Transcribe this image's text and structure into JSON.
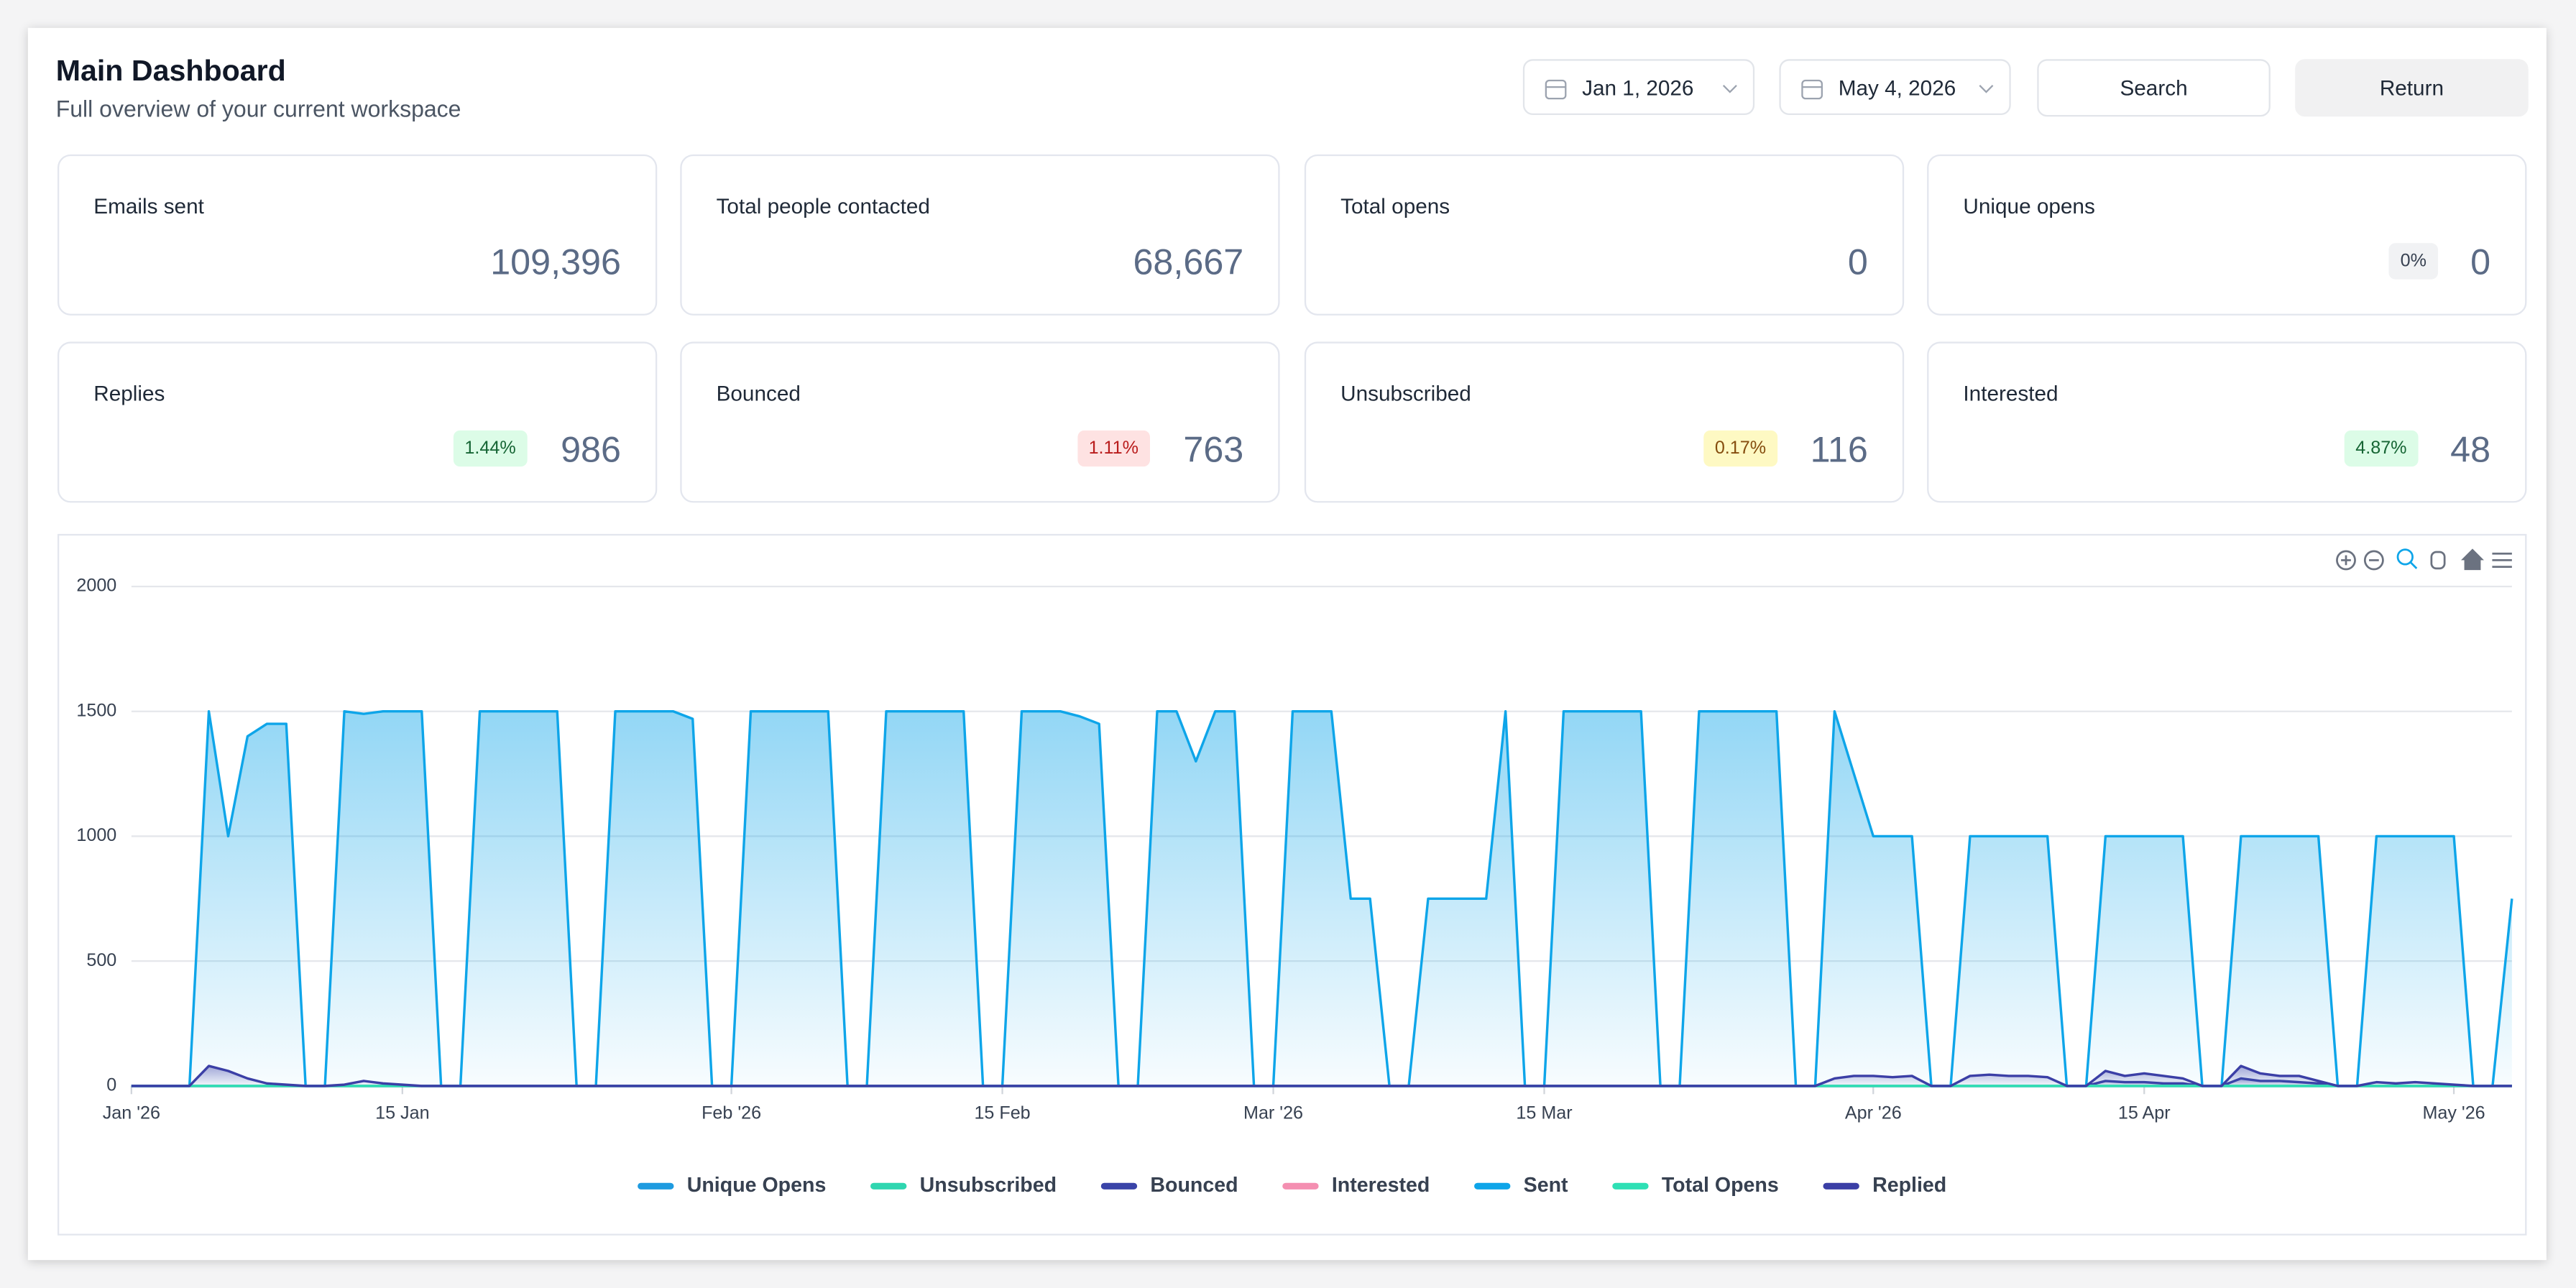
{
  "header": {
    "title": "Main Dashboard",
    "subtitle": "Full overview of your current workspace"
  },
  "filters": {
    "start_date": "Jan 1, 2026",
    "end_date": "May 4, 2026",
    "search": "Search",
    "return": "Return"
  },
  "stats": [
    {
      "label": "Emails sent",
      "value": "109,396"
    },
    {
      "label": "Total people contacted",
      "value": "68,667"
    },
    {
      "label": "Total opens",
      "value": "0"
    },
    {
      "label": "Unique opens",
      "value": "0",
      "badge": "0%"
    },
    {
      "label": "Replies",
      "value": "986",
      "badge": "1.44%"
    },
    {
      "label": "Bounced",
      "value": "763",
      "badge": "1.11%"
    },
    {
      "label": "Unsubscribed",
      "value": "116",
      "badge": "0.17%"
    },
    {
      "label": "Interested",
      "value": "48",
      "badge": "4.87%"
    }
  ],
  "chart_data": {
    "type": "area",
    "grid": true,
    "xlim": [
      "2026-01-01",
      "2026-05-04"
    ],
    "xticks": [
      {
        "value": "2026-01-01",
        "label": "Jan '26"
      },
      {
        "value": "2026-01-15",
        "label": "15 Jan"
      },
      {
        "value": "2026-02-01",
        "label": "Feb '26"
      },
      {
        "value": "2026-02-15",
        "label": "15 Feb"
      },
      {
        "value": "2026-03-01",
        "label": "Mar '26"
      },
      {
        "value": "2026-03-15",
        "label": "15 Mar"
      },
      {
        "value": "2026-04-01",
        "label": "Apr '26"
      },
      {
        "value": "2026-04-15",
        "label": "15 Apr"
      },
      {
        "value": "2026-05-01",
        "label": "May '26"
      }
    ],
    "ylim": [
      0,
      2000
    ],
    "yticks": [
      0,
      500,
      1000,
      1500,
      2000
    ],
    "x": [
      "2026-01-01",
      "2026-01-02",
      "2026-01-03",
      "2026-01-04",
      "2026-01-05",
      "2026-01-06",
      "2026-01-07",
      "2026-01-08",
      "2026-01-09",
      "2026-01-10",
      "2026-01-11",
      "2026-01-12",
      "2026-01-13",
      "2026-01-14",
      "2026-01-15",
      "2026-01-16",
      "2026-01-17",
      "2026-01-18",
      "2026-01-19",
      "2026-01-20",
      "2026-01-21",
      "2026-01-22",
      "2026-01-23",
      "2026-01-24",
      "2026-01-25",
      "2026-01-26",
      "2026-01-27",
      "2026-01-28",
      "2026-01-29",
      "2026-01-30",
      "2026-01-31",
      "2026-02-01",
      "2026-02-02",
      "2026-02-03",
      "2026-02-04",
      "2026-02-05",
      "2026-02-06",
      "2026-02-07",
      "2026-02-08",
      "2026-02-09",
      "2026-02-10",
      "2026-02-11",
      "2026-02-12",
      "2026-02-13",
      "2026-02-14",
      "2026-02-15",
      "2026-02-16",
      "2026-02-17",
      "2026-02-18",
      "2026-02-19",
      "2026-02-20",
      "2026-02-21",
      "2026-02-22",
      "2026-02-23",
      "2026-02-24",
      "2026-02-25",
      "2026-02-26",
      "2026-02-27",
      "2026-02-28",
      "2026-03-01",
      "2026-03-02",
      "2026-03-03",
      "2026-03-04",
      "2026-03-05",
      "2026-03-06",
      "2026-03-07",
      "2026-03-08",
      "2026-03-09",
      "2026-03-10",
      "2026-03-11",
      "2026-03-12",
      "2026-03-13",
      "2026-03-14",
      "2026-03-15",
      "2026-03-16",
      "2026-03-17",
      "2026-03-18",
      "2026-03-19",
      "2026-03-20",
      "2026-03-21",
      "2026-03-22",
      "2026-03-23",
      "2026-03-24",
      "2026-03-25",
      "2026-03-26",
      "2026-03-27",
      "2026-03-28",
      "2026-03-29",
      "2026-03-30",
      "2026-03-31",
      "2026-04-01",
      "2026-04-02",
      "2026-04-03",
      "2026-04-04",
      "2026-04-05",
      "2026-04-06",
      "2026-04-07",
      "2026-04-08",
      "2026-04-09",
      "2026-04-10",
      "2026-04-11",
      "2026-04-12",
      "2026-04-13",
      "2026-04-14",
      "2026-04-15",
      "2026-04-16",
      "2026-04-17",
      "2026-04-18",
      "2026-04-19",
      "2026-04-20",
      "2026-04-21",
      "2026-04-22",
      "2026-04-23",
      "2026-04-24",
      "2026-04-25",
      "2026-04-26",
      "2026-04-27",
      "2026-04-28",
      "2026-04-29",
      "2026-04-30",
      "2026-05-01",
      "2026-05-02",
      "2026-05-03",
      "2026-05-04"
    ],
    "series": [
      {
        "name": "Unique Opens",
        "color": "#1e9be0",
        "values": [
          0,
          0,
          0,
          0,
          0,
          0,
          0,
          0,
          0,
          0,
          0,
          0,
          0,
          0,
          0,
          0,
          0,
          0,
          0,
          0,
          0,
          0,
          0,
          0,
          0,
          0,
          0,
          0,
          0,
          0,
          0,
          0,
          0,
          0,
          0,
          0,
          0,
          0,
          0,
          0,
          0,
          0,
          0,
          0,
          0,
          0,
          0,
          0,
          0,
          0,
          0,
          0,
          0,
          0,
          0,
          0,
          0,
          0,
          0,
          0,
          0,
          0,
          0,
          0,
          0,
          0,
          0,
          0,
          0,
          0,
          0,
          0,
          0,
          0,
          0,
          0,
          0,
          0,
          0,
          0,
          0,
          0,
          0,
          0,
          0,
          0,
          0,
          0,
          0,
          0,
          0,
          0,
          0,
          0,
          0,
          0,
          0,
          0,
          0,
          0,
          0,
          0,
          0,
          0,
          0,
          0,
          0,
          0,
          0,
          0,
          0,
          0,
          0,
          0,
          0,
          0,
          0,
          0,
          0,
          0,
          0,
          0,
          0,
          0
        ]
      },
      {
        "name": "Unsubscribed",
        "color": "#2fd6b0",
        "values": [
          0,
          0,
          0,
          0,
          0,
          0,
          0,
          0,
          0,
          0,
          0,
          0,
          0,
          0,
          0,
          0,
          0,
          0,
          0,
          0,
          0,
          0,
          0,
          0,
          0,
          0,
          0,
          0,
          0,
          0,
          0,
          0,
          0,
          0,
          0,
          0,
          0,
          0,
          0,
          0,
          0,
          0,
          0,
          0,
          0,
          0,
          0,
          0,
          0,
          0,
          0,
          0,
          0,
          0,
          0,
          0,
          0,
          0,
          0,
          0,
          0,
          0,
          0,
          0,
          0,
          0,
          0,
          0,
          0,
          0,
          0,
          0,
          0,
          0,
          0,
          0,
          0,
          0,
          0,
          0,
          0,
          0,
          0,
          0,
          0,
          0,
          0,
          0,
          0,
          0,
          0,
          0,
          0,
          0,
          0,
          0,
          0,
          0,
          0,
          0,
          0,
          0,
          0,
          0,
          0,
          0,
          0,
          0,
          0,
          0,
          0,
          0,
          0,
          0,
          0,
          0,
          0,
          0,
          0,
          0,
          0,
          0,
          0,
          0
        ]
      },
      {
        "name": "Bounced",
        "color": "#3a44a8",
        "values": [
          0,
          0,
          0,
          0,
          0,
          0,
          0,
          0,
          0,
          0,
          0,
          0,
          0,
          0,
          0,
          0,
          0,
          0,
          0,
          0,
          0,
          0,
          0,
          0,
          0,
          0,
          0,
          0,
          0,
          0,
          0,
          0,
          0,
          0,
          0,
          0,
          0,
          0,
          0,
          0,
          0,
          0,
          0,
          0,
          0,
          0,
          0,
          0,
          0,
          0,
          0,
          0,
          0,
          0,
          0,
          0,
          0,
          0,
          0,
          0,
          0,
          0,
          0,
          0,
          0,
          0,
          0,
          0,
          0,
          0,
          0,
          0,
          0,
          0,
          0,
          0,
          0,
          0,
          0,
          0,
          0,
          0,
          0,
          0,
          0,
          0,
          0,
          0,
          0,
          0,
          0,
          0,
          0,
          0,
          0,
          0,
          0,
          0,
          0,
          0,
          0,
          0,
          20,
          15,
          15,
          10,
          10,
          0,
          0,
          30,
          20,
          20,
          15,
          10,
          0,
          0,
          0,
          0,
          0,
          0,
          0,
          0,
          0,
          0
        ]
      },
      {
        "name": "Interested",
        "color": "#f48fb1",
        "values": [
          0,
          0,
          0,
          0,
          0,
          0,
          0,
          0,
          0,
          0,
          0,
          0,
          0,
          0,
          0,
          0,
          0,
          0,
          0,
          0,
          0,
          0,
          0,
          0,
          0,
          0,
          0,
          0,
          0,
          0,
          0,
          0,
          0,
          0,
          0,
          0,
          0,
          0,
          0,
          0,
          0,
          0,
          0,
          0,
          0,
          0,
          0,
          0,
          0,
          0,
          0,
          0,
          0,
          0,
          0,
          0,
          0,
          0,
          0,
          0,
          0,
          0,
          0,
          0,
          0,
          0,
          0,
          0,
          0,
          0,
          0,
          0,
          0,
          0,
          0,
          0,
          0,
          0,
          0,
          0,
          0,
          0,
          0,
          0,
          0,
          0,
          0,
          0,
          0,
          0,
          0,
          0,
          0,
          0,
          0,
          0,
          0,
          0,
          0,
          0,
          0,
          0,
          0,
          0,
          0,
          0,
          0,
          0,
          0,
          0,
          0,
          0,
          0,
          0,
          0,
          0,
          0,
          0,
          0,
          0,
          0,
          0,
          0,
          0
        ]
      },
      {
        "name": "Sent",
        "color": "#0ea5e9",
        "values": [
          0,
          0,
          0,
          0,
          1500,
          1000,
          1400,
          1450,
          1450,
          0,
          0,
          1500,
          1490,
          1500,
          1500,
          1500,
          0,
          0,
          1500,
          1500,
          1500,
          1500,
          1500,
          0,
          0,
          1500,
          1500,
          1500,
          1500,
          1470,
          0,
          0,
          1500,
          1500,
          1500,
          1500,
          1500,
          0,
          0,
          1500,
          1500,
          1500,
          1500,
          1500,
          0,
          0,
          1500,
          1500,
          1500,
          1480,
          1450,
          0,
          0,
          1500,
          1500,
          1300,
          1500,
          1500,
          0,
          0,
          1500,
          1500,
          1500,
          750,
          750,
          0,
          0,
          750,
          750,
          750,
          750,
          1500,
          0,
          0,
          1500,
          1500,
          1500,
          1500,
          1500,
          0,
          0,
          1500,
          1500,
          1500,
          1500,
          1500,
          0,
          0,
          1500,
          1250,
          1000,
          1000,
          1000,
          0,
          0,
          1000,
          1000,
          1000,
          1000,
          1000,
          0,
          0,
          1000,
          1000,
          1000,
          1000,
          1000,
          0,
          0,
          1000,
          1000,
          1000,
          1000,
          1000,
          0,
          0,
          1000,
          1000,
          1000,
          1000,
          1000,
          0,
          0,
          750
        ]
      },
      {
        "name": "Total Opens",
        "color": "#2ee0b5",
        "values": [
          0,
          0,
          0,
          0,
          0,
          0,
          0,
          0,
          0,
          0,
          0,
          0,
          0,
          0,
          0,
          0,
          0,
          0,
          0,
          0,
          0,
          0,
          0,
          0,
          0,
          0,
          0,
          0,
          0,
          0,
          0,
          0,
          0,
          0,
          0,
          0,
          0,
          0,
          0,
          0,
          0,
          0,
          0,
          0,
          0,
          0,
          0,
          0,
          0,
          0,
          0,
          0,
          0,
          0,
          0,
          0,
          0,
          0,
          0,
          0,
          0,
          0,
          0,
          0,
          0,
          0,
          0,
          0,
          0,
          0,
          0,
          0,
          0,
          0,
          0,
          0,
          0,
          0,
          0,
          0,
          0,
          0,
          0,
          0,
          0,
          0,
          0,
          0,
          0,
          0,
          0,
          0,
          0,
          0,
          0,
          0,
          0,
          0,
          0,
          0,
          0,
          0,
          0,
          0,
          0,
          0,
          0,
          0,
          0,
          0,
          0,
          0,
          0,
          0,
          0,
          0,
          0,
          0,
          0,
          0,
          0,
          0,
          0,
          0
        ]
      },
      {
        "name": "Replied",
        "color": "#3b3fa6",
        "values": [
          0,
          0,
          0,
          0,
          80,
          60,
          30,
          10,
          5,
          0,
          0,
          5,
          20,
          10,
          5,
          0,
          0,
          0,
          0,
          0,
          0,
          0,
          0,
          0,
          0,
          0,
          0,
          0,
          0,
          0,
          0,
          0,
          0,
          0,
          0,
          0,
          0,
          0,
          0,
          0,
          0,
          0,
          0,
          0,
          0,
          0,
          0,
          0,
          0,
          0,
          0,
          0,
          0,
          0,
          0,
          0,
          0,
          0,
          0,
          0,
          0,
          0,
          0,
          0,
          0,
          0,
          0,
          0,
          0,
          0,
          0,
          0,
          0,
          0,
          0,
          0,
          0,
          0,
          0,
          0,
          0,
          0,
          0,
          0,
          0,
          0,
          0,
          0,
          30,
          40,
          40,
          35,
          40,
          0,
          0,
          40,
          45,
          40,
          40,
          35,
          0,
          0,
          60,
          40,
          50,
          40,
          30,
          0,
          0,
          80,
          50,
          40,
          40,
          20,
          0,
          0,
          15,
          10,
          15,
          10,
          5,
          0,
          0,
          0
        ]
      }
    ]
  }
}
